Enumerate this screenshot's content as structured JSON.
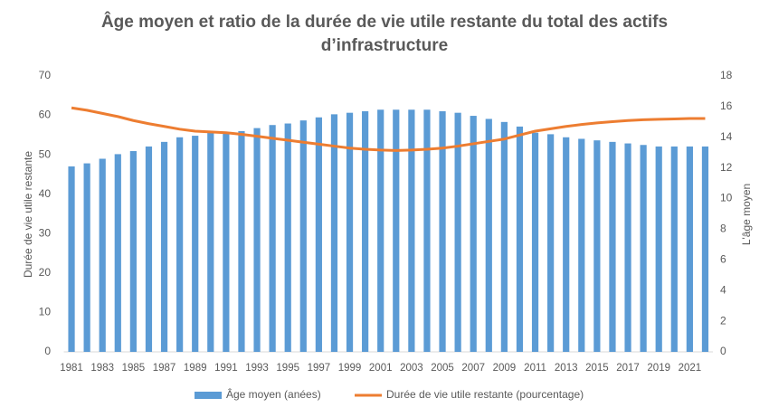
{
  "chart_data": {
    "type": "bar-line",
    "title": "Âge moyen et ratio de la durée de vie utile restante du total des actifs d’infrastructure",
    "y_label": "Durée de vie utile restante",
    "y2_label": "L'âge moyen",
    "categories": [
      "1981",
      null,
      "1983",
      null,
      "1985",
      null,
      "1987",
      null,
      "1989",
      null,
      "1991",
      null,
      "1993",
      null,
      "1995",
      null,
      "1997",
      null,
      "1999",
      null,
      "2001",
      null,
      "2003",
      null,
      "2005",
      null,
      "2007",
      null,
      "2009",
      null,
      "2011",
      null,
      "2013",
      null,
      "2015",
      null,
      "2017",
      null,
      "2019",
      null,
      "2021",
      null
    ],
    "series": [
      {
        "name": "Âge moyen (anées)",
        "type": "bar",
        "axis": "y2",
        "color": "#5b9bd5",
        "values": [
          12.1,
          12.3,
          12.6,
          12.9,
          13.1,
          13.4,
          13.7,
          14.0,
          14.1,
          14.3,
          14.3,
          14.4,
          14.6,
          14.8,
          14.9,
          15.1,
          15.3,
          15.5,
          15.6,
          15.7,
          15.8,
          15.8,
          15.8,
          15.8,
          15.7,
          15.6,
          15.4,
          15.2,
          15.0,
          14.7,
          14.3,
          14.2,
          14.0,
          13.9,
          13.8,
          13.7,
          13.6,
          13.5,
          13.4,
          13.4,
          13.4,
          13.4
        ]
      },
      {
        "name": "Durée de vie utile restante (pourcentage)",
        "type": "line",
        "axis": "y",
        "color": "#ed7d31",
        "values": [
          61.9,
          61.3,
          60.5,
          59.7,
          58.7,
          57.9,
          57.2,
          56.5,
          56.0,
          55.8,
          55.6,
          55.2,
          54.7,
          54.2,
          53.7,
          53.2,
          52.7,
          52.2,
          51.7,
          51.4,
          51.2,
          51.1,
          51.2,
          51.4,
          51.7,
          52.2,
          52.8,
          53.4,
          54.0,
          55.0,
          56.0,
          56.6,
          57.2,
          57.7,
          58.1,
          58.4,
          58.7,
          58.9,
          59.0,
          59.1,
          59.2,
          59.2
        ]
      }
    ],
    "ylim": [
      0,
      70
    ],
    "yticks": [
      0,
      10,
      20,
      30,
      40,
      50,
      60,
      70
    ],
    "y2lim": [
      0,
      18
    ],
    "y2ticks": [
      0,
      2,
      4,
      6,
      8,
      10,
      12,
      14,
      16,
      18
    ]
  }
}
